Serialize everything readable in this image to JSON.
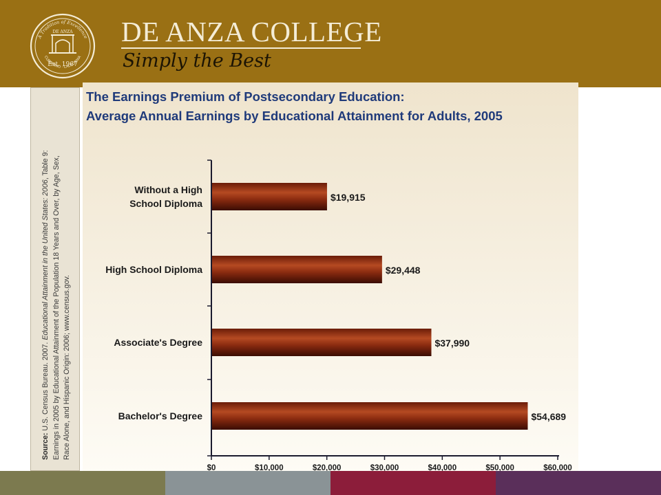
{
  "header": {
    "college_name": "DE ANZA COLLEGE",
    "tagline": "Simply the Best",
    "seal_top_text": "A Tradition of Excellence",
    "seal_name": "DE ANZA",
    "seal_bottom_text": "CUPERTINO · CALIFORNIA",
    "seal_established": "Est. 1967",
    "colors": {
      "header_bg": "#9a7014",
      "header_text": "#f4ecd6",
      "tagline_text": "#1c1404"
    }
  },
  "source_note": {
    "label": "Source:",
    "line1_plain": "U.S. Census Bureau. 2007.",
    "line1_title": "Educational Attainment in the United States: 2006",
    "line1_tail": ", Table 9:",
    "line2": "Earnings in 2005 by Educational Attainment of the Population 18 Years and Over, by Age, Sex,",
    "line3": "Race Alone, and Hispanic Origin: 2006; www.census.gov."
  },
  "chart_data": {
    "type": "bar",
    "orientation": "horizontal",
    "title_lines": [
      "The Earnings Premium of Postsecondary Education:",
      "Average Annual Earnings by Educational Attainment for Adults, 2005"
    ],
    "categories": [
      [
        "Without a High",
        "School Diploma"
      ],
      [
        "High School Diploma"
      ],
      [
        "Associate's Degree"
      ],
      [
        "Bachelor's Degree"
      ]
    ],
    "values": [
      19915,
      29448,
      37990,
      54689
    ],
    "data_labels": [
      "$19,915",
      "$29,448",
      "$37,990",
      "$54,689"
    ],
    "x_ticks": [
      0,
      10000,
      20000,
      30000,
      40000,
      50000,
      60000
    ],
    "x_tick_labels": [
      "$0",
      "$10,000",
      "$20,000",
      "$30,000",
      "$40,000",
      "$50,000",
      "$60,000"
    ],
    "xlim": [
      0,
      60000
    ],
    "grid": false,
    "colors": {
      "bar": "#8b2b10",
      "bar_highlight": "#b54a22",
      "bar_shadow": "#3a0c03",
      "title": "#1f3a7a",
      "panel_top": "#efe4cd",
      "panel_bottom": "#fefcf6"
    }
  },
  "footer_colors": [
    "#7c7a4f",
    "#8a9396",
    "#8c1d3a",
    "#5a2f5a"
  ]
}
